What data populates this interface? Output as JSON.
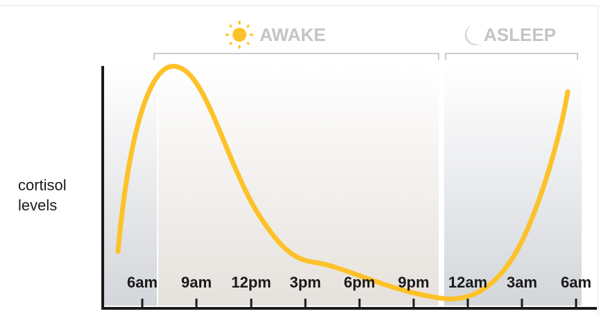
{
  "phases": {
    "awake": "AWAKE",
    "asleep": "ASLEEP"
  },
  "y_label": [
    "cortisol",
    "levels"
  ],
  "x_labels": [
    "6am",
    "9am",
    "12pm",
    "3pm",
    "6pm",
    "9pm",
    "12am",
    "3am",
    "6am"
  ]
}
